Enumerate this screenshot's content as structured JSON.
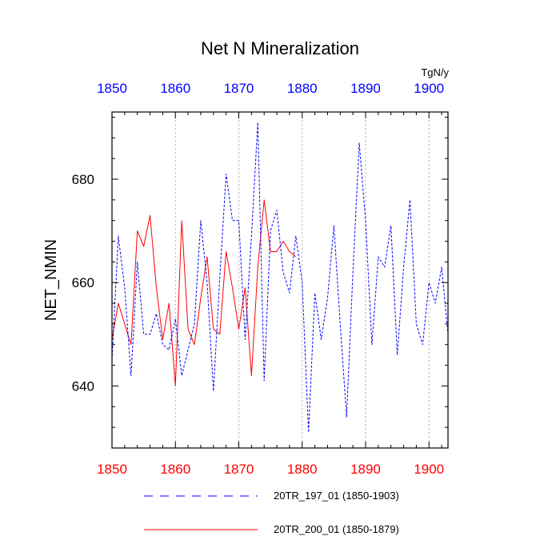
{
  "chart_data": {
    "type": "line",
    "title": "Net N Mineralization",
    "ylabel": "NET_NMIN",
    "units": "TgN/y",
    "xlim": [
      1850,
      1903
    ],
    "ylim": [
      628,
      693
    ],
    "bottom_ticks": [
      "1850",
      "1860",
      "1870",
      "1880",
      "1890",
      "1900"
    ],
    "top_ticks": [
      "1850",
      "1860",
      "1870",
      "1880",
      "1890",
      "1900"
    ],
    "y_ticks": [
      "640",
      "660",
      "680"
    ],
    "bottom_tick_color": "#ff0000",
    "top_tick_color": "#0000ff",
    "series": [
      {
        "name": "20TR_197_01 (1850-1903)",
        "color": "#0000ff",
        "dash": "dashed",
        "x": [
          1850,
          1851,
          1852,
          1853,
          1854,
          1855,
          1856,
          1857,
          1858,
          1859,
          1860,
          1861,
          1862,
          1863,
          1864,
          1865,
          1866,
          1867,
          1868,
          1869,
          1870,
          1871,
          1872,
          1873,
          1874,
          1875,
          1876,
          1877,
          1878,
          1879,
          1880,
          1881,
          1882,
          1883,
          1884,
          1885,
          1886,
          1887,
          1888,
          1889,
          1890,
          1891,
          1892,
          1893,
          1894,
          1895,
          1896,
          1897,
          1898,
          1899,
          1900,
          1901,
          1902,
          1903
        ],
        "values": [
          645,
          669,
          659,
          642,
          664,
          650,
          650,
          654,
          648,
          647,
          653,
          642,
          647,
          652,
          672,
          660,
          639,
          661,
          681,
          672,
          672,
          649,
          669,
          691,
          641,
          670,
          674,
          662,
          658,
          669,
          660,
          631,
          658,
          649,
          657,
          671,
          652,
          634,
          662,
          687,
          672,
          648,
          665,
          663,
          671,
          646,
          663,
          676,
          652,
          648,
          660,
          656,
          663,
          650
        ]
      },
      {
        "name": "20TR_200_01 (1850-1879)",
        "color": "#ff0000",
        "dash": "solid",
        "x": [
          1850,
          1851,
          1852,
          1853,
          1854,
          1855,
          1856,
          1857,
          1858,
          1859,
          1860,
          1861,
          1862,
          1863,
          1864,
          1865,
          1866,
          1867,
          1868,
          1869,
          1870,
          1871,
          1872,
          1873,
          1874,
          1875,
          1876,
          1877,
          1878,
          1879
        ],
        "values": [
          649,
          656,
          652,
          648,
          670,
          667,
          673,
          659,
          649,
          656,
          640,
          672,
          651,
          648,
          657,
          665,
          651,
          650,
          666,
          659,
          651,
          659,
          642,
          663,
          676,
          666,
          666,
          668,
          666,
          665
        ]
      }
    ]
  }
}
